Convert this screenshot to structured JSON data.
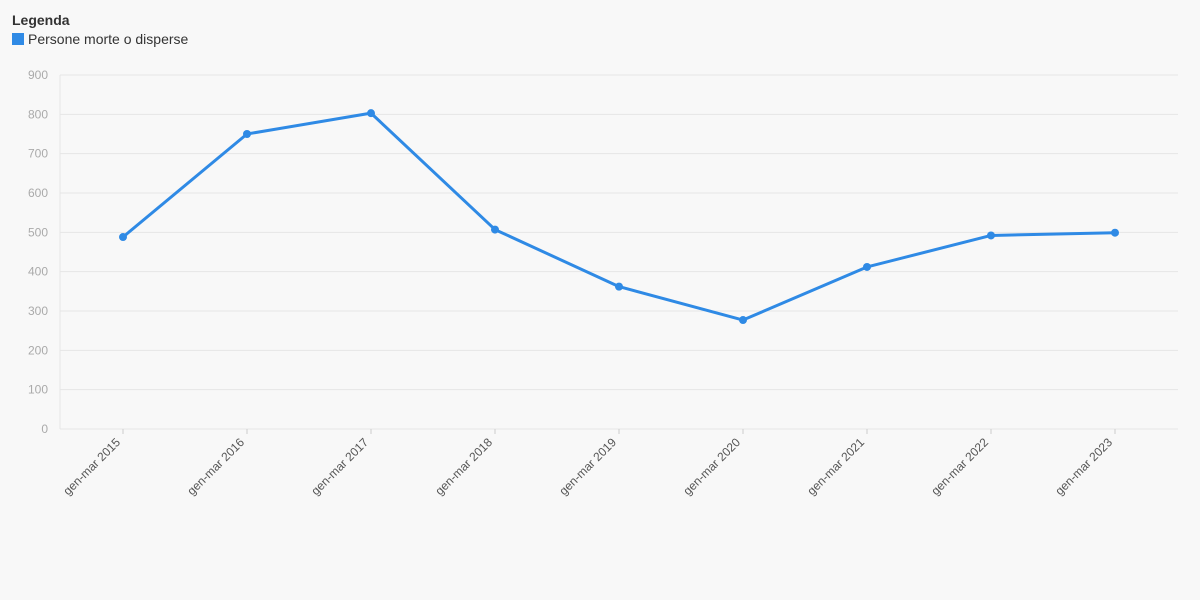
{
  "legend": {
    "title": "Legenda",
    "items": [
      {
        "label": "Persone morte o disperse",
        "color": "#2f8ae5"
      }
    ]
  },
  "chart_data": {
    "type": "line",
    "categories": [
      "gen-mar 2015",
      "gen-mar 2016",
      "gen-mar 2017",
      "gen-mar 2018",
      "gen-mar 2019",
      "gen-mar 2020",
      "gen-mar 2021",
      "gen-mar 2022",
      "gen-mar 2023"
    ],
    "series": [
      {
        "name": "Persone morte o disperse",
        "values": [
          488,
          750,
          803,
          507,
          362,
          277,
          412,
          492,
          499
        ],
        "color": "#2f8ae5"
      }
    ],
    "yticks": [
      0,
      100,
      200,
      300,
      400,
      500,
      600,
      700,
      800,
      900
    ],
    "ylim": [
      0,
      900
    ],
    "grid": true,
    "legend_position": "top-left"
  }
}
